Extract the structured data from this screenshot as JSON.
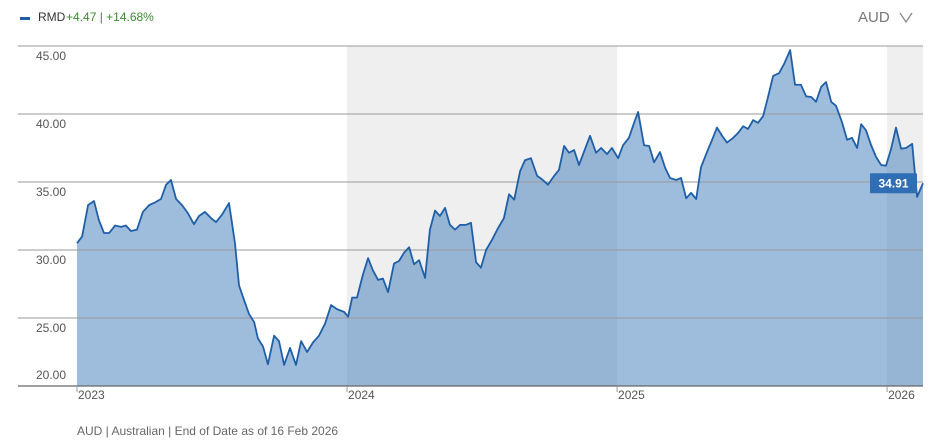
{
  "chart_data": {
    "type": "area",
    "series": [
      {
        "name": "RMD",
        "color": "#1f5fa8",
        "values": [
          30.5,
          31.0,
          33.3,
          33.6,
          32.2,
          31.25,
          31.25,
          31.8,
          31.7,
          31.8,
          31.4,
          31.5,
          32.8,
          33.3,
          33.5,
          33.75,
          34.8,
          35.15,
          33.75,
          33.3,
          32.7,
          31.9,
          32.5,
          32.8,
          32.35,
          32.05,
          32.6,
          33.45,
          30.5,
          27.4,
          26.3,
          25.3,
          24.7,
          23.5,
          22.9,
          21.6,
          23.7,
          23.3,
          21.55,
          22.8,
          21.55,
          23.3,
          22.5,
          23.2,
          23.7,
          24.6,
          25.95,
          25.65,
          25.45,
          25.1,
          26.5,
          26.5,
          28.2,
          29.4,
          28.5,
          27.8,
          27.9,
          26.9,
          29.0,
          29.2,
          29.8,
          30.2,
          28.95,
          29.25,
          27.95,
          31.5,
          32.9,
          32.5,
          33.1,
          31.85,
          31.5,
          31.85,
          31.85,
          32.0,
          29.1,
          28.7,
          30.0,
          30.75,
          31.6,
          32.35,
          34.1,
          33.7,
          35.8,
          36.6,
          36.75,
          35.45,
          35.2,
          34.8,
          35.45,
          35.9,
          37.65,
          37.15,
          37.35,
          36.25,
          37.4,
          38.4,
          37.15,
          37.5,
          37.05,
          37.5,
          36.75,
          37.7,
          38.25,
          39.35,
          40.15,
          37.7,
          37.65,
          36.45,
          37.2,
          36.05,
          35.3,
          35.15,
          35.3,
          33.8,
          34.2,
          33.75,
          36.1,
          37.2,
          38.1,
          39.0,
          38.4,
          37.9,
          38.25,
          38.6,
          39.1,
          38.9,
          39.55,
          39.35,
          39.85,
          41.25,
          42.8,
          43.0,
          43.7,
          44.7,
          42.15,
          42.15,
          41.3,
          41.25,
          40.9,
          42.0,
          42.35,
          40.9,
          40.6,
          39.4,
          38.1,
          38.25,
          37.5,
          39.25,
          38.8,
          37.7,
          36.85,
          36.25,
          36.2,
          37.45,
          39.0,
          37.45,
          37.5,
          37.8,
          33.9,
          34.91
        ]
      }
    ],
    "x": [
      2023.0,
      2023.019,
      2023.041,
      2023.063,
      2023.081,
      2023.1,
      2023.119,
      2023.141,
      2023.163,
      2023.181,
      2023.2,
      2023.222,
      2023.244,
      2023.267,
      2023.289,
      2023.311,
      2023.33,
      2023.348,
      2023.367,
      2023.389,
      2023.411,
      2023.433,
      2023.452,
      2023.474,
      2023.496,
      2023.515,
      2023.537,
      2023.563,
      2023.585,
      2023.6,
      2023.619,
      2023.637,
      2023.656,
      2023.67,
      2023.689,
      2023.707,
      2023.73,
      2023.748,
      2023.767,
      2023.789,
      2023.811,
      2023.83,
      2023.852,
      2023.874,
      2023.896,
      2023.919,
      2023.941,
      2023.963,
      2023.989,
      2024.004,
      2024.019,
      2024.037,
      2024.059,
      2024.078,
      2024.096,
      2024.115,
      2024.133,
      2024.152,
      2024.174,
      2024.193,
      2024.211,
      2024.23,
      2024.248,
      2024.267,
      2024.289,
      2024.307,
      2024.326,
      2024.344,
      2024.363,
      2024.381,
      2024.4,
      2024.419,
      2024.441,
      2024.459,
      2024.478,
      2024.496,
      2024.515,
      2024.537,
      2024.559,
      2024.581,
      2024.6,
      2024.619,
      2024.641,
      2024.659,
      2024.681,
      2024.704,
      2024.722,
      2024.744,
      2024.767,
      2024.785,
      2024.804,
      2024.822,
      2024.841,
      2024.859,
      2024.881,
      2024.9,
      2024.922,
      2024.941,
      2024.963,
      2024.981,
      2025.004,
      2025.022,
      2025.044,
      2025.063,
      2025.078,
      2025.1,
      2025.119,
      2025.137,
      2025.159,
      2025.178,
      2025.196,
      2025.219,
      2025.237,
      2025.256,
      2025.274,
      2025.293,
      2025.311,
      2025.333,
      2025.352,
      2025.37,
      2025.389,
      2025.407,
      2025.43,
      2025.448,
      2025.467,
      2025.485,
      2025.504,
      2025.522,
      2025.541,
      2025.559,
      2025.578,
      2025.6,
      2025.619,
      2025.641,
      2025.659,
      2025.681,
      2025.7,
      2025.719,
      2025.737,
      2025.756,
      2025.774,
      2025.793,
      2025.811,
      2025.833,
      2025.852,
      2025.87,
      2025.889,
      2025.904,
      2025.922,
      2025.941,
      2025.959,
      2025.978,
      2025.996,
      2026.015,
      2026.033,
      2026.052,
      2026.07,
      2026.093,
      2026.111,
      2026.133
    ],
    "xlim": [
      2023,
      2026.133
    ],
    "xticks": [
      2023,
      2024,
      2025,
      2026
    ],
    "ylim": [
      20,
      45
    ],
    "yticks": [
      {
        "value": 20,
        "label": "20.00"
      },
      {
        "value": 25,
        "label": "25.00"
      },
      {
        "value": 30,
        "label": "30.00"
      },
      {
        "value": 35,
        "label": "35.00"
      },
      {
        "value": 40,
        "label": "40.00"
      },
      {
        "value": 45,
        "label": "45.00"
      }
    ],
    "grid": true,
    "change": "+4.47 | +14.68%",
    "change_color": "#3a8a2e",
    "currency": "AUD",
    "note": "AUD | Australian | End of Date as of 16 Feb 2026"
  }
}
